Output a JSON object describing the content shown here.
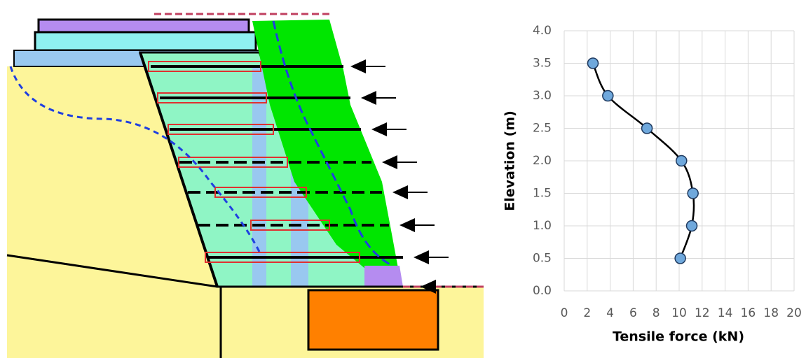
{
  "chart_data": {
    "type": "scatter",
    "x_label": "Tensile force (kN)",
    "y_label": "Elevation (m)",
    "x": [
      2.5,
      3.8,
      7.2,
      10.2,
      11.2,
      11.1,
      10.1
    ],
    "values": [
      3.5,
      3.0,
      2.5,
      2.0,
      1.5,
      1.0,
      0.5
    ],
    "marker_color": "#6fa8dc",
    "line_color": "#000000",
    "smooth": true,
    "xlim": [
      0,
      20
    ],
    "xticks": [
      0,
      2,
      4,
      6,
      8,
      10,
      12,
      14,
      16,
      18,
      20
    ],
    "ylim": [
      0,
      4
    ],
    "yticks": [
      {
        "value": 0,
        "label": "0.0"
      },
      0.5,
      {
        "value": 1,
        "label": "1.0"
      },
      1.5,
      {
        "value": 2,
        "label": "2.0"
      },
      2.5,
      {
        "value": 3,
        "label": "3.0"
      },
      3.5,
      {
        "value": 4,
        "label": "4.0"
      }
    ],
    "grid": true
  }
}
